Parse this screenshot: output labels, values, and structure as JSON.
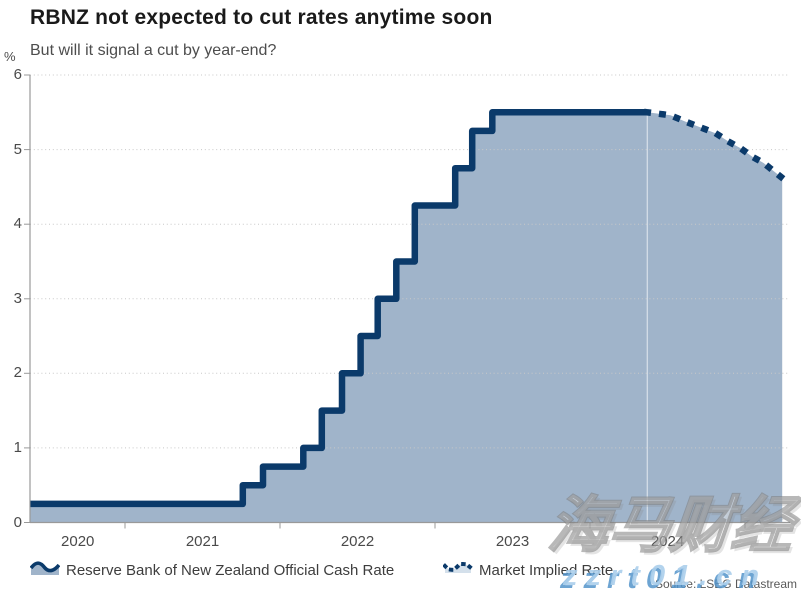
{
  "page": {
    "title": "RBNZ not expected to cut rates anytime soon",
    "subtitle": "But will it signal a cut by year-end?"
  },
  "y_axis": {
    "unit_label": "%",
    "tick_labels": [
      "6",
      "5",
      "4",
      "3",
      "2",
      "1",
      "0"
    ]
  },
  "x_axis": {
    "tick_labels": [
      "2020",
      "2021",
      "2022",
      "2023",
      "2024"
    ]
  },
  "legend": {
    "items": [
      {
        "label": "Reserve Bank of New Zealand Official Cash Rate",
        "style": "solid-step-area"
      },
      {
        "label": "Market Implied Rate",
        "style": "dotted-line"
      }
    ]
  },
  "source_note": "Source: LSEG Datastream",
  "watermark": {
    "brand_cn": "海马财经",
    "brand_url": "zzrt01.cn"
  },
  "colors": {
    "line_navy": "#0b3a6a",
    "area_fill": "#a0b4ca",
    "axis_gray": "#999999",
    "grid_gray": "#c8c8c8",
    "title_text": "#1a1a1a",
    "muted_text": "#4d4d4d"
  },
  "chart_data": {
    "type": "area",
    "title": "RBNZ not expected to cut rates anytime soon",
    "subtitle": "But will it signal a cut by year-end?",
    "xlabel": "",
    "ylabel": "%",
    "ylim": [
      0,
      6
    ],
    "xlim": [
      2020.39,
      2025.29
    ],
    "grid": "horizontal-dotted",
    "legend_position": "bottom",
    "x_tick_boundaries": [
      2021,
      2022,
      2023,
      2024,
      2025
    ],
    "forecast_divider_x": 2024.37,
    "series": [
      {
        "name": "Reserve Bank of New Zealand Official Cash Rate",
        "type": "step-after",
        "line": "solid",
        "points": [
          [
            2020.39,
            0.25
          ],
          [
            2021.76,
            0.5
          ],
          [
            2021.89,
            0.75
          ],
          [
            2022.15,
            1.0
          ],
          [
            2022.27,
            1.5
          ],
          [
            2022.4,
            2.0
          ],
          [
            2022.52,
            2.5
          ],
          [
            2022.63,
            3.0
          ],
          [
            2022.75,
            3.5
          ],
          [
            2022.87,
            4.25
          ],
          [
            2023.13,
            4.75
          ],
          [
            2023.24,
            5.25
          ],
          [
            2023.37,
            5.5
          ],
          [
            2024.37,
            5.5
          ]
        ]
      },
      {
        "name": "Market Implied Rate",
        "type": "line",
        "line": "dotted",
        "points": [
          [
            2024.37,
            5.5
          ],
          [
            2024.52,
            5.46
          ],
          [
            2024.61,
            5.38
          ],
          [
            2024.71,
            5.3
          ],
          [
            2024.81,
            5.22
          ],
          [
            2024.9,
            5.1
          ],
          [
            2024.97,
            5.02
          ],
          [
            2025.05,
            4.9
          ],
          [
            2025.12,
            4.82
          ],
          [
            2025.18,
            4.72
          ],
          [
            2025.24,
            4.62
          ]
        ]
      }
    ]
  }
}
